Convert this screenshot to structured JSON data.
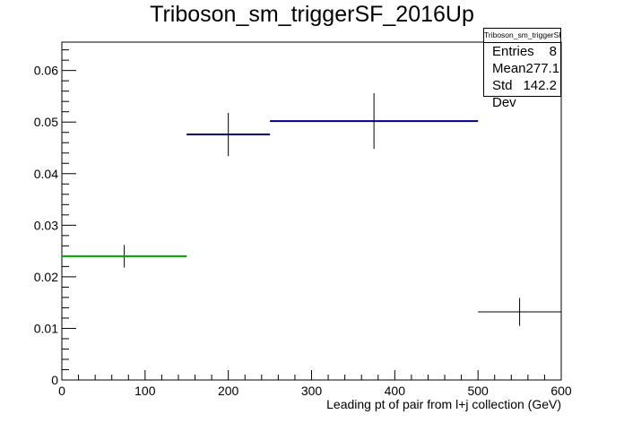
{
  "chart_data": {
    "type": "histogram",
    "title": "Triboson_sm_triggerSF_2016Up",
    "xlabel": "Leading pt of pair from l+j collection (GeV)",
    "ylabel": "",
    "xlim": [
      0,
      600
    ],
    "ylim": [
      0,
      0.0655
    ],
    "xticks": [
      0,
      100,
      200,
      300,
      400,
      500,
      600
    ],
    "xtick_labels": [
      "0",
      "100",
      "200",
      "300",
      "400",
      "500",
      "600"
    ],
    "yticks": [
      0,
      0.01,
      0.02,
      0.03,
      0.04,
      0.05,
      0.06
    ],
    "ytick_labels": [
      "0",
      "0.01",
      "0.02",
      "0.03",
      "0.04",
      "0.05",
      "0.06"
    ],
    "grid": false,
    "bins": [
      {
        "low": 0,
        "high": 150,
        "value": 0.024,
        "err": 0.0022,
        "color": "#00a000"
      },
      {
        "low": 150,
        "high": 250,
        "value": 0.0476,
        "err": 0.0042,
        "color": "#000080"
      },
      {
        "low": 250,
        "high": 500,
        "value": 0.0502,
        "err": 0.0054,
        "color": "#000080"
      },
      {
        "low": 500,
        "high": 600,
        "value": 0.0132,
        "err": 0.0027,
        "color": "#000000"
      }
    ],
    "stats": {
      "title": "Triboson_sm_triggerSF_2016Up",
      "rows": [
        {
          "label": "Entries",
          "value": "8"
        },
        {
          "label": "Mean",
          "value": "277.1"
        },
        {
          "label": "Std Dev",
          "value": "142.2"
        }
      ]
    }
  }
}
